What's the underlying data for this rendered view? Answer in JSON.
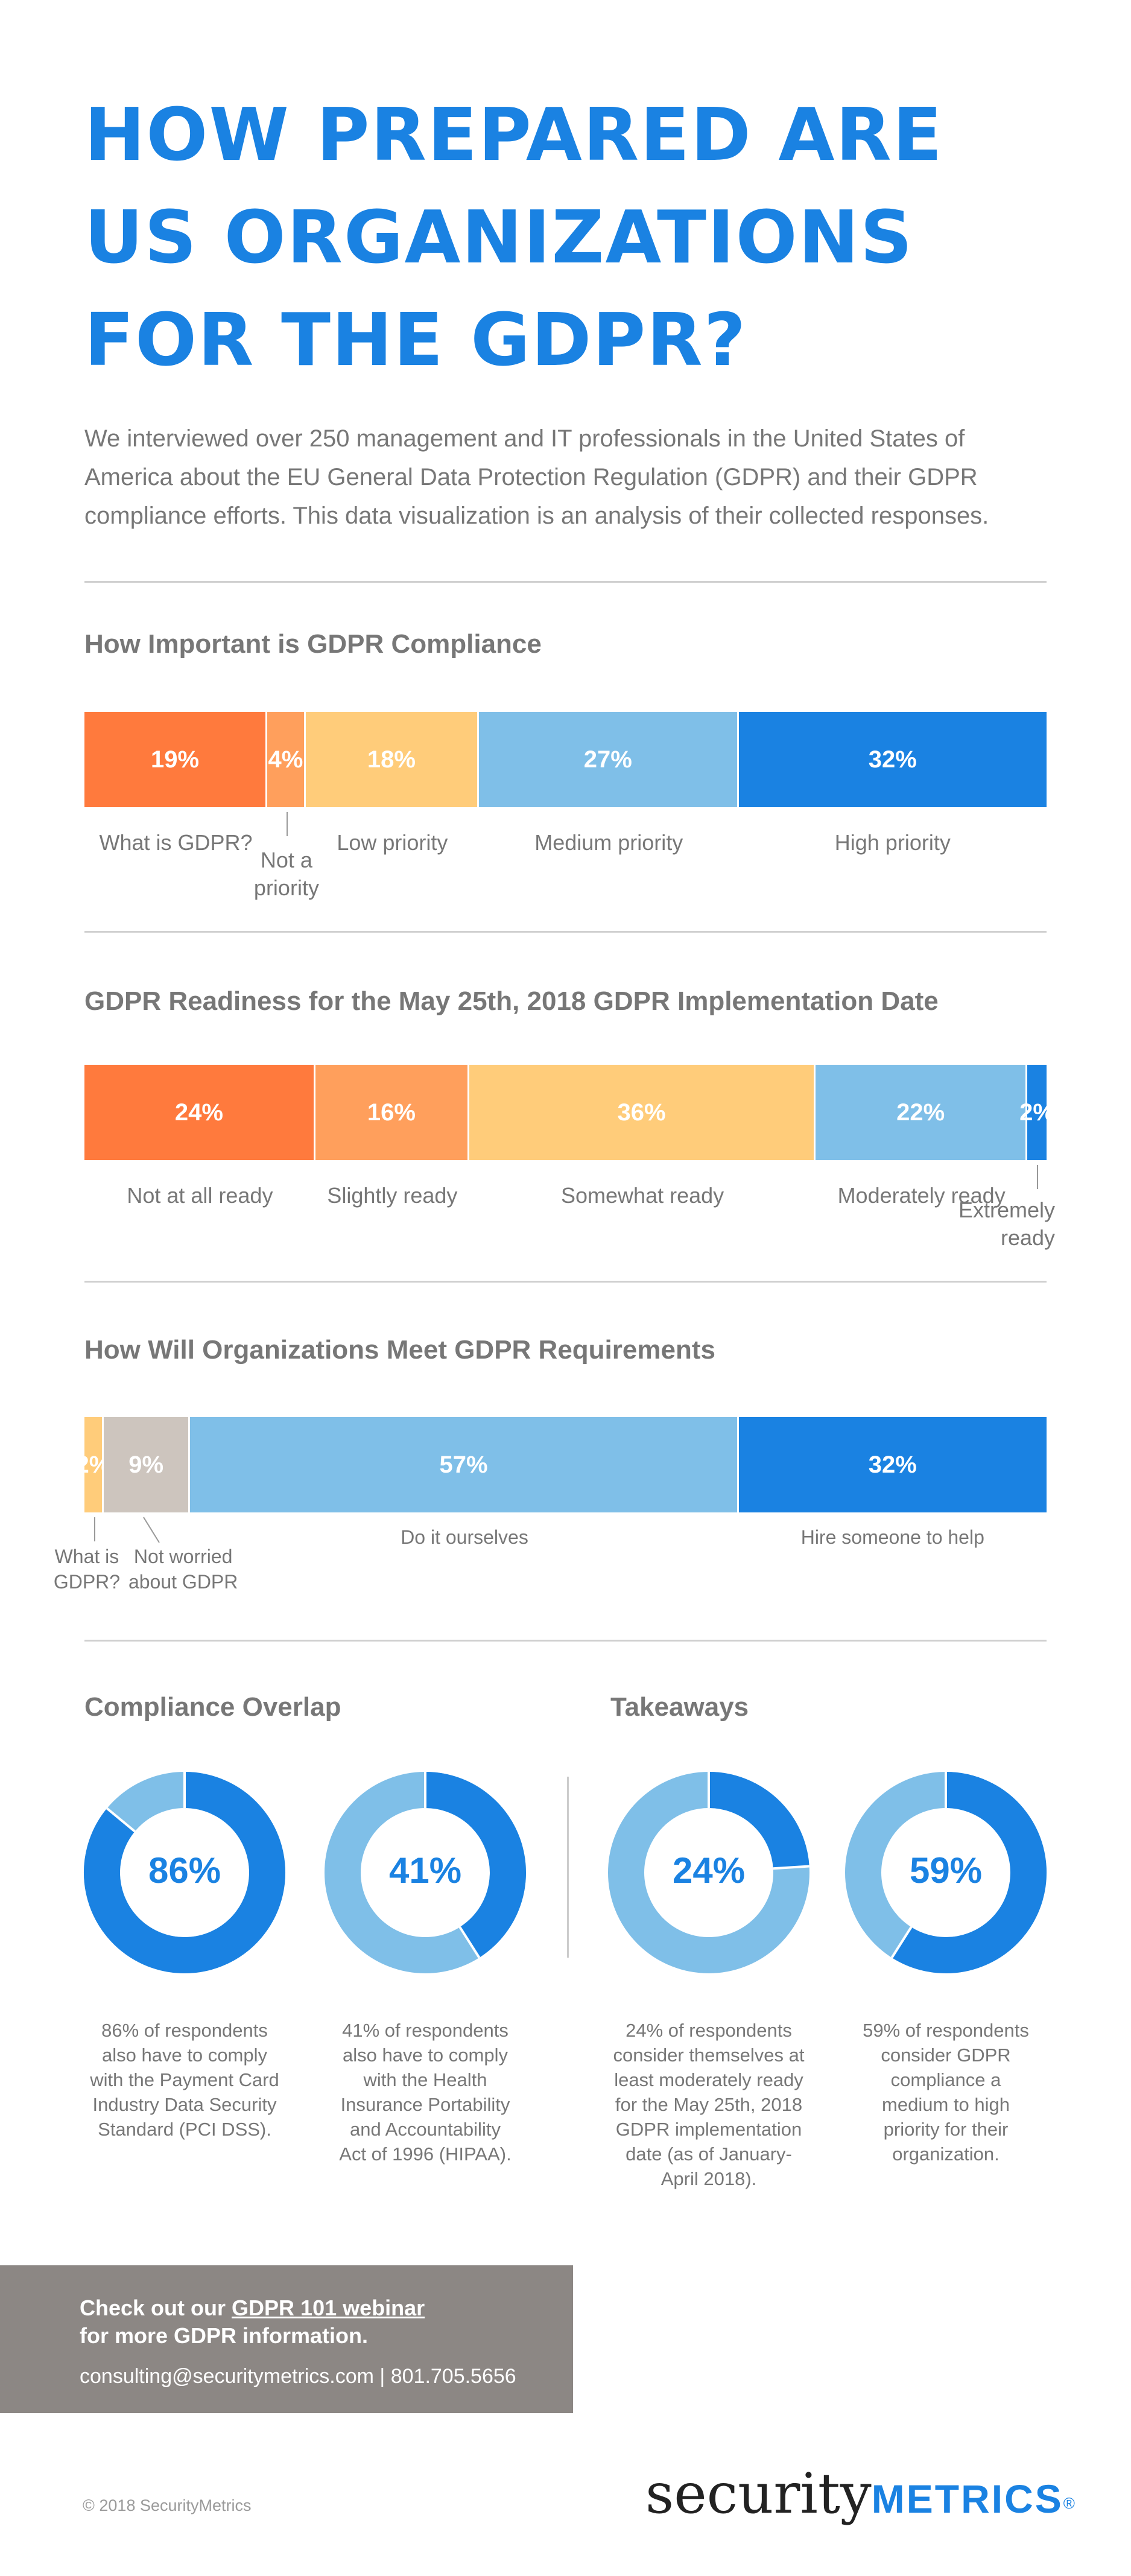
{
  "header": {
    "title_line1": "HOW PREPARED ARE",
    "title_line2": "US ORGANIZATIONS",
    "title_line3": "FOR THE GDPR?",
    "intro_line1": "We interviewed over 250 management and IT professionals in the United States of",
    "intro_line2": "America about the EU General Data Protection Regulation (GDPR) and their GDPR",
    "intro_line3": "compliance efforts. This data visualization is an analysis of their collected responses."
  },
  "chart_data": [
    {
      "type": "bar",
      "orientation": "horizontal-stacked-100",
      "title": "How Important is GDPR Compliance",
      "categories": [
        "What is GDPR?",
        "Not a priority",
        "Low priority",
        "Medium priority",
        "High priority"
      ],
      "values": [
        19,
        4,
        18,
        27,
        32
      ],
      "data_labels": [
        "19%",
        "4%",
        "18%",
        "27%",
        "32%"
      ],
      "colors": [
        "#ff7a3d",
        "#ff9f5c",
        "#ffcc7a",
        "#7fbfe8",
        "#1a82e2"
      ]
    },
    {
      "type": "bar",
      "orientation": "horizontal-stacked-100",
      "title": "GDPR Readiness for the May 25th, 2018 GDPR Implementation Date",
      "categories": [
        "Not at all ready",
        "Slightly ready",
        "Somewhat ready",
        "Moderately ready",
        "Extremely ready"
      ],
      "values": [
        24,
        16,
        36,
        22,
        2
      ],
      "data_labels": [
        "24%",
        "16%",
        "36%",
        "22%",
        "2%"
      ],
      "colors": [
        "#ff7a3d",
        "#ff9f5c",
        "#ffcc7a",
        "#7fbfe8",
        "#1a82e2"
      ]
    },
    {
      "type": "bar",
      "orientation": "horizontal-stacked-100",
      "title": "How Will Organizations Meet GDPR Requirements",
      "categories": [
        "What is GDPR?",
        "Not worried about GDPR",
        "Do it ourselves",
        "Hire someone to help"
      ],
      "values": [
        2,
        9,
        57,
        32
      ],
      "data_labels": [
        "2%",
        "9%",
        "57%",
        "32%"
      ],
      "colors": [
        "#ffcc7a",
        "#cdc5be",
        "#7fbfe8",
        "#1a82e2"
      ]
    },
    {
      "type": "pie",
      "style": "donut",
      "group": "Compliance Overlap",
      "value": 86,
      "label": "86%",
      "caption": [
        "86% of respondents",
        "also have to comply",
        "with the Payment Card",
        "Industry Data Security",
        "Standard (PCI DSS)."
      ],
      "colors": {
        "value": "#1a82e2",
        "rest": "#7fbfe8"
      }
    },
    {
      "type": "pie",
      "style": "donut",
      "group": "Compliance Overlap",
      "value": 41,
      "label": "41%",
      "caption": [
        "41% of respondents",
        "also have to comply",
        "with the Health",
        "Insurance Portability",
        "and Accountability",
        "Act of 1996 (HIPAA)."
      ],
      "colors": {
        "value": "#1a82e2",
        "rest": "#7fbfe8"
      }
    },
    {
      "type": "pie",
      "style": "donut",
      "group": "Takeaways",
      "value": 24,
      "label": "24%",
      "caption": [
        "24% of respondents",
        "consider themselves at",
        "least moderately ready",
        "for the May 25th, 2018",
        "GDPR implementation",
        "date (as of January-",
        "April 2018)."
      ],
      "colors": {
        "value": "#1a82e2",
        "rest": "#7fbfe8"
      }
    },
    {
      "type": "pie",
      "style": "donut",
      "group": "Takeaways",
      "value": 59,
      "label": "59%",
      "caption": [
        "59% of respondents",
        "consider GDPR",
        "compliance a",
        "medium to high",
        "priority for their",
        "organization."
      ],
      "colors": {
        "value": "#1a82e2",
        "rest": "#7fbfe8"
      }
    }
  ],
  "sections": {
    "overlap_title": "Compliance Overlap",
    "takeaways_title": "Takeaways"
  },
  "cta": {
    "line1_prefix": "Check out our ",
    "link_text": "GDPR 101 webinar",
    "line2": "for more GDPR information.",
    "contact": "consulting@securitymetrics.com | 801.705.5656"
  },
  "footer": {
    "copyright": "© 2018 SecurityMetrics",
    "logo_security": "security",
    "logo_metrics": "METRICS",
    "logo_reg": "®"
  }
}
